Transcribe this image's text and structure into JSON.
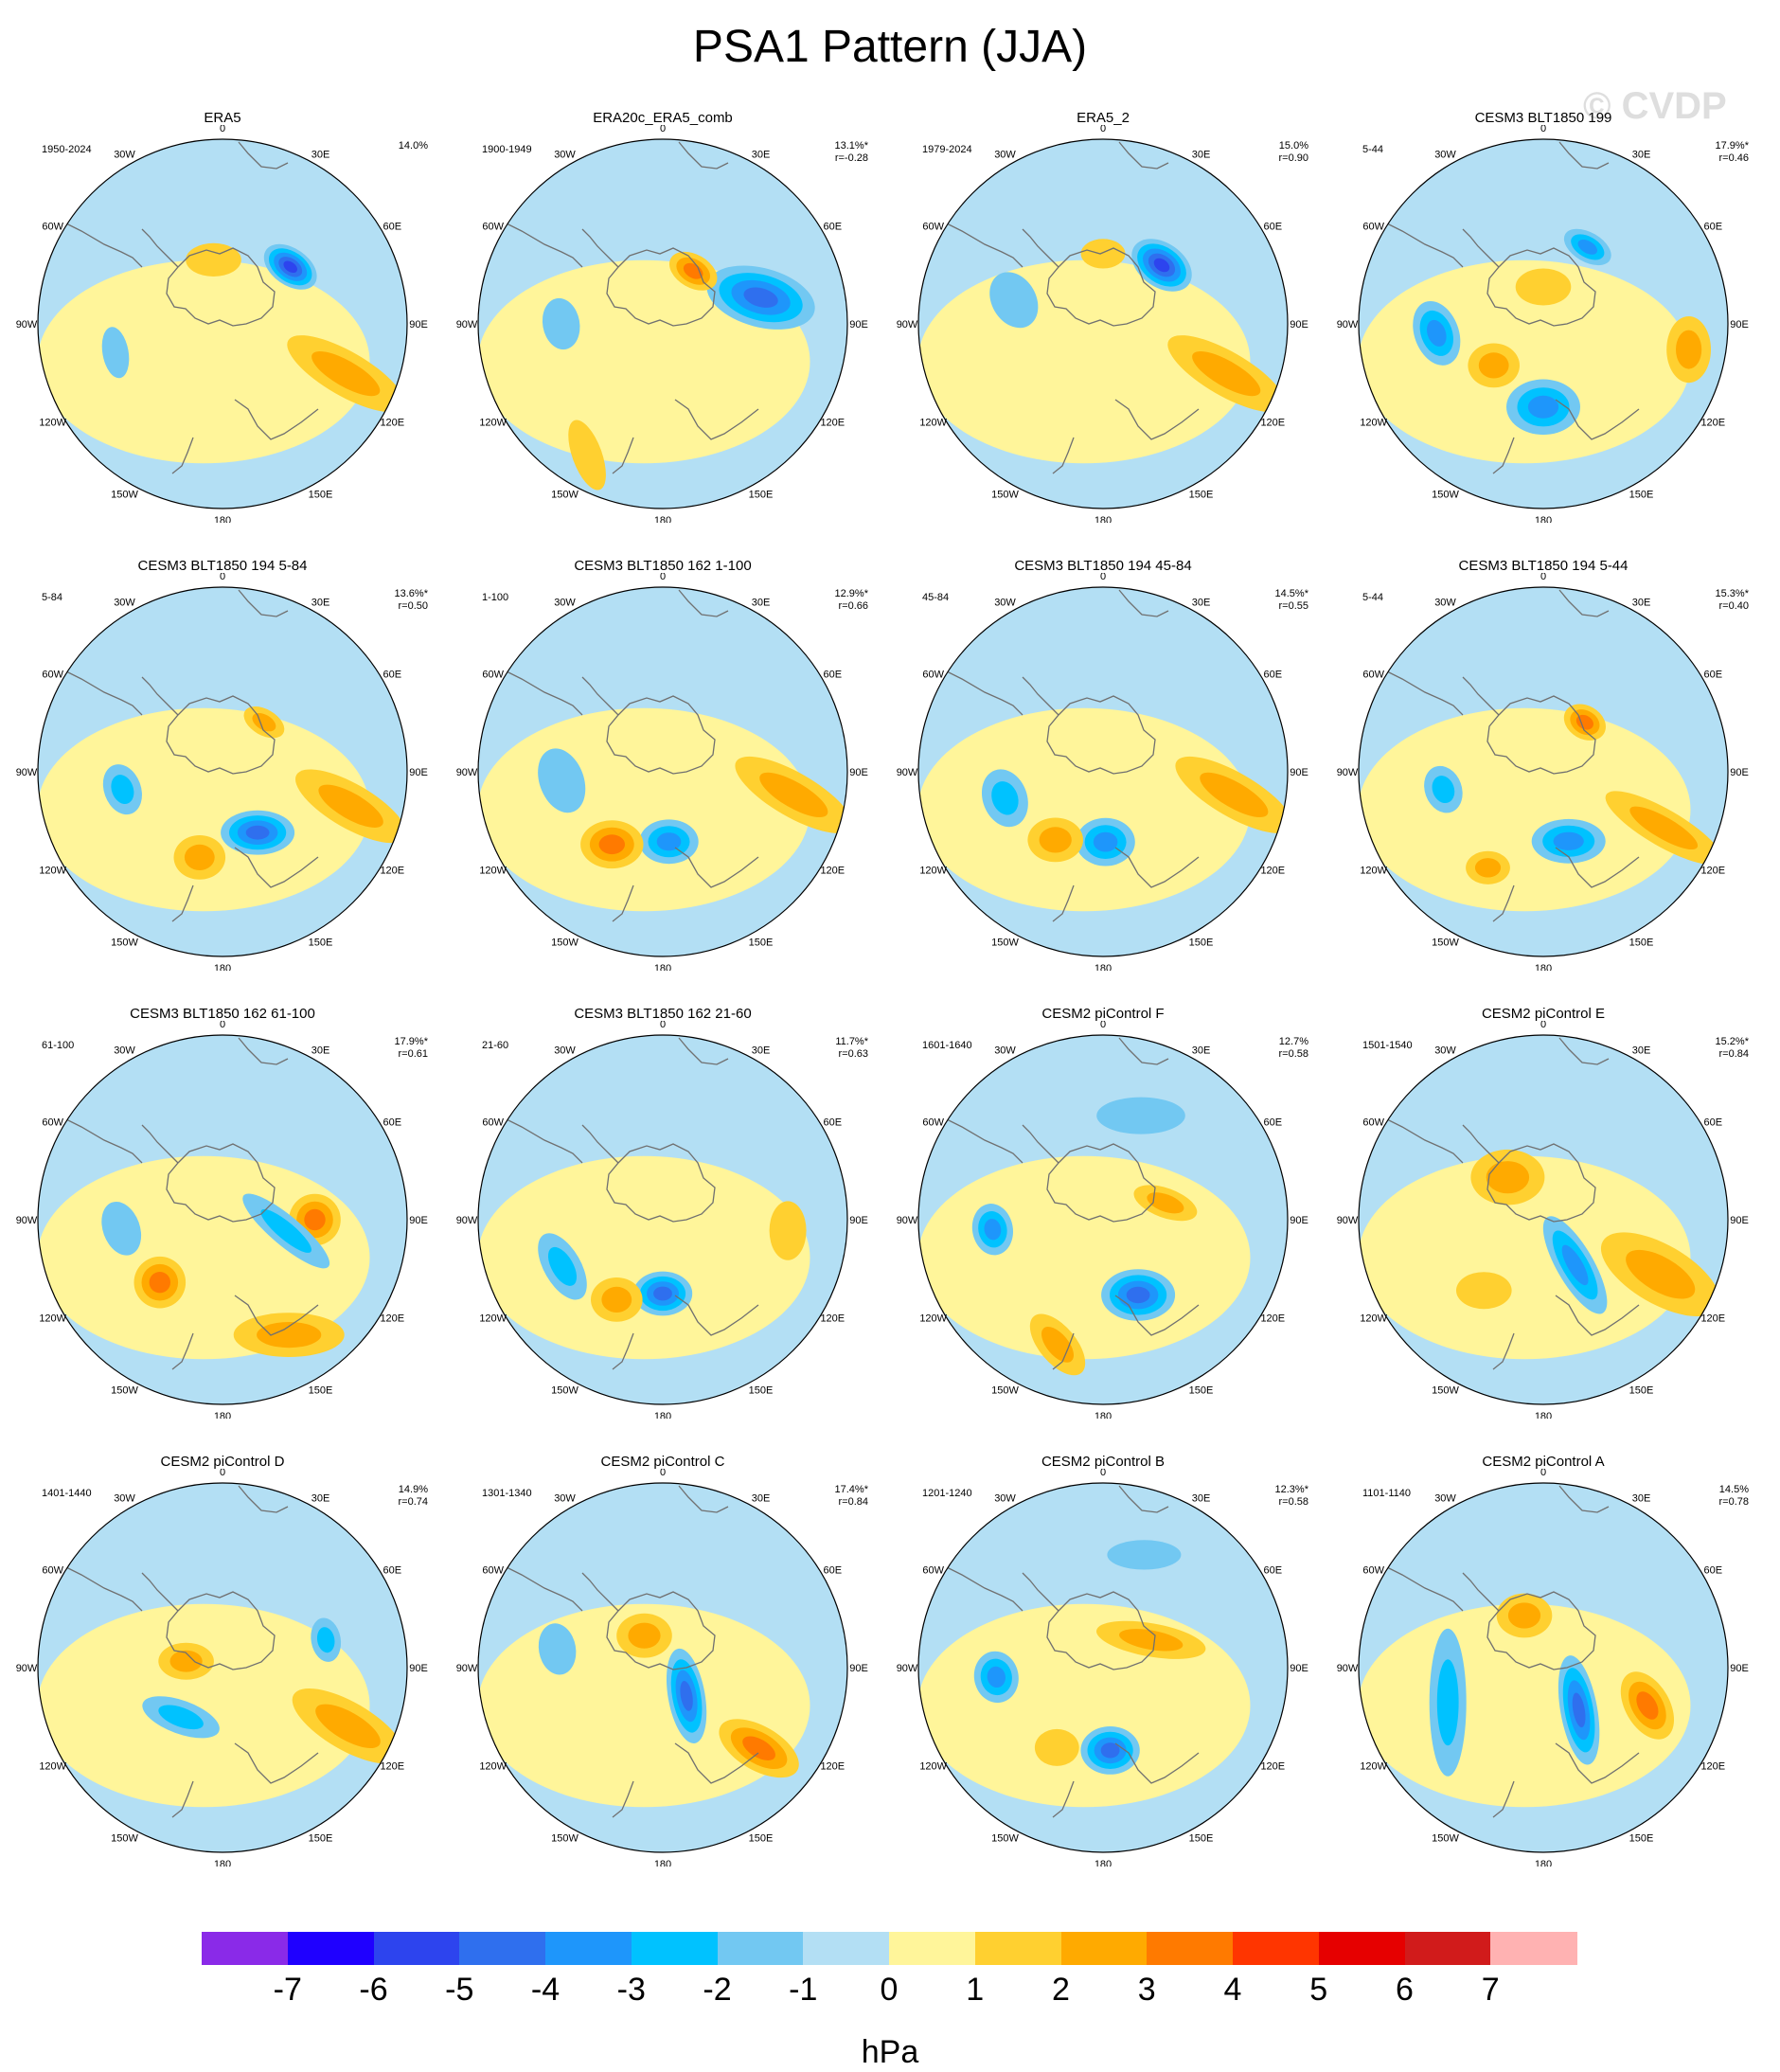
{
  "title": "PSA1 Pattern (JJA)",
  "watermark": "© CVDP",
  "longitude_labels": [
    "0",
    "30E",
    "60E",
    "90E",
    "120E",
    "150E",
    "180",
    "150W",
    "120W",
    "90W",
    "60W",
    "30W"
  ],
  "colors": {
    "land_outline": "#707070",
    "map_border": "#000000",
    "scale": [
      "#8a2ae8",
      "#1f00ff",
      "#2d44ee",
      "#2f6fee",
      "#1e96fb",
      "#00c2ff",
      "#72c8f2",
      "#b3dff4",
      "#fff59a",
      "#ffd030",
      "#ffaa00",
      "#ff7a00",
      "#ff3500",
      "#e60000",
      "#d11b1b",
      "#ffb2b2"
    ]
  },
  "colorbar": {
    "ticks": [
      "-7",
      "-6",
      "-5",
      "-4",
      "-3",
      "-2",
      "-1",
      "0",
      "1",
      "2",
      "3",
      "4",
      "5",
      "6",
      "7"
    ],
    "unit": "hPa"
  },
  "panels": [
    {
      "name": "ERA5",
      "years": "1950-2024",
      "pct": "14.0%",
      "r": "",
      "features": [
        {
          "lon": 50,
          "colat": 0.48,
          "value": -5.5,
          "rx": 0.16,
          "ry": 0.1,
          "rot": 35
        },
        {
          "lon": 112,
          "colat": 0.72,
          "value": 2.2,
          "rx": 0.36,
          "ry": 0.12,
          "rot": 30
        },
        {
          "lon": -8,
          "colat": 0.35,
          "value": 1.6,
          "rx": 0.15,
          "ry": 0.09,
          "rot": 0
        },
        {
          "lon": -105,
          "colat": 0.6,
          "value": -1.5,
          "rx": 0.14,
          "ry": 0.07,
          "rot": 80
        }
      ]
    },
    {
      "name": "ERA20c_ERA5_comb",
      "years": "1900-1949",
      "pct": "13.1%*",
      "r": "r=-0.28",
      "features": [
        {
          "lon": 75,
          "colat": 0.55,
          "value": -4.5,
          "rx": 0.3,
          "ry": 0.16,
          "rot": 15
        },
        {
          "lon": 30,
          "colat": 0.33,
          "value": 3.5,
          "rx": 0.14,
          "ry": 0.09,
          "rot": 30
        },
        {
          "lon": -90,
          "colat": 0.55,
          "value": -1.4,
          "rx": 0.14,
          "ry": 0.1,
          "rot": 80
        },
        {
          "lon": -150,
          "colat": 0.82,
          "value": 1.0,
          "rx": 0.2,
          "ry": 0.08,
          "rot": 70
        }
      ]
    },
    {
      "name": "ERA5_2",
      "years": "1979-2024",
      "pct": "15.0%",
      "r": "r=0.90",
      "features": [
        {
          "lon": 45,
          "colat": 0.45,
          "value": -5.0,
          "rx": 0.18,
          "ry": 0.12,
          "rot": 35
        },
        {
          "lon": 112,
          "colat": 0.72,
          "value": 2.0,
          "rx": 0.36,
          "ry": 0.12,
          "rot": 30
        },
        {
          "lon": -75,
          "colat": 0.5,
          "value": -1.5,
          "rx": 0.16,
          "ry": 0.12,
          "rot": 60
        },
        {
          "lon": 0,
          "colat": 0.38,
          "value": 1.3,
          "rx": 0.12,
          "ry": 0.08,
          "rot": 0
        }
      ]
    },
    {
      "name": "CESM3 BLT1850 199",
      "years": "5-44",
      "pct": "17.9%*",
      "r": "r=0.46",
      "features": [
        {
          "lon": 180,
          "colat": 0.45,
          "value": -3.5,
          "rx": 0.2,
          "ry": 0.15,
          "rot": 0
        },
        {
          "lon": -95,
          "colat": 0.58,
          "value": -3.2,
          "rx": 0.18,
          "ry": 0.12,
          "rot": 70
        },
        {
          "lon": 30,
          "colat": 0.48,
          "value": -3.0,
          "rx": 0.14,
          "ry": 0.08,
          "rot": 30
        },
        {
          "lon": 100,
          "colat": 0.8,
          "value": 2.8,
          "rx": 0.18,
          "ry": 0.12,
          "rot": 90
        },
        {
          "lon": -130,
          "colat": 0.35,
          "value": 2.6,
          "rx": 0.14,
          "ry": 0.12,
          "rot": 0
        },
        {
          "lon": 0,
          "colat": 0.2,
          "value": 1.5,
          "rx": 0.15,
          "ry": 0.1,
          "rot": 0
        }
      ]
    },
    {
      "name": "CESM3 BLT1850 194 5-84",
      "years": "5-84",
      "pct": "13.6%*",
      "r": "r=0.50",
      "features": [
        {
          "lon": 150,
          "colat": 0.38,
          "value": -4.0,
          "rx": 0.2,
          "ry": 0.12,
          "rot": 0
        },
        {
          "lon": -100,
          "colat": 0.55,
          "value": -2.5,
          "rx": 0.14,
          "ry": 0.1,
          "rot": 70
        },
        {
          "lon": -165,
          "colat": 0.48,
          "value": 2.8,
          "rx": 0.14,
          "ry": 0.12,
          "rot": 0
        },
        {
          "lon": 105,
          "colat": 0.72,
          "value": 2.2,
          "rx": 0.34,
          "ry": 0.12,
          "rot": 30
        },
        {
          "lon": 40,
          "colat": 0.35,
          "value": 2.5,
          "rx": 0.12,
          "ry": 0.07,
          "rot": 30
        }
      ]
    },
    {
      "name": "CESM3 BLT1850 162 1-100",
      "years": "1-100",
      "pct": "12.9%*",
      "r": "r=0.66",
      "features": [
        {
          "lon": 175,
          "colat": 0.38,
          "value": -3.5,
          "rx": 0.16,
          "ry": 0.12,
          "rot": 0
        },
        {
          "lon": -145,
          "colat": 0.48,
          "value": 3.0,
          "rx": 0.17,
          "ry": 0.13,
          "rot": 0
        },
        {
          "lon": 100,
          "colat": 0.72,
          "value": 2.2,
          "rx": 0.36,
          "ry": 0.12,
          "rot": 30
        },
        {
          "lon": -95,
          "colat": 0.55,
          "value": -1.6,
          "rx": 0.18,
          "ry": 0.12,
          "rot": 70
        }
      ]
    },
    {
      "name": "CESM3 BLT1850 194 45-84",
      "years": "45-84",
      "pct": "14.5%*",
      "r": "r=0.55",
      "features": [
        {
          "lon": 178,
          "colat": 0.38,
          "value": -3.2,
          "rx": 0.16,
          "ry": 0.13,
          "rot": 0
        },
        {
          "lon": -145,
          "colat": 0.45,
          "value": 2.8,
          "rx": 0.15,
          "ry": 0.12,
          "rot": 0
        },
        {
          "lon": -105,
          "colat": 0.55,
          "value": -2.8,
          "rx": 0.16,
          "ry": 0.12,
          "rot": 70
        },
        {
          "lon": 100,
          "colat": 0.72,
          "value": 2.2,
          "rx": 0.36,
          "ry": 0.12,
          "rot": 30
        }
      ]
    },
    {
      "name": "CESM3 BLT1850 194 5-44",
      "years": "5-44",
      "pct": "15.3%*",
      "r": "r=0.40",
      "features": [
        {
          "lon": 160,
          "colat": 0.4,
          "value": -3.8,
          "rx": 0.2,
          "ry": 0.12,
          "rot": 0
        },
        {
          "lon": -100,
          "colat": 0.55,
          "value": -2.4,
          "rx": 0.13,
          "ry": 0.1,
          "rot": 70
        },
        {
          "lon": 40,
          "colat": 0.35,
          "value": 3.6,
          "rx": 0.12,
          "ry": 0.09,
          "rot": 30
        },
        {
          "lon": 115,
          "colat": 0.72,
          "value": 2.0,
          "rx": 0.36,
          "ry": 0.1,
          "rot": 30
        },
        {
          "lon": -150,
          "colat": 0.6,
          "value": 2.4,
          "rx": 0.12,
          "ry": 0.09,
          "rot": 0
        }
      ]
    },
    {
      "name": "CESM3 BLT1850 162 61-100",
      "years": "61-100",
      "pct": "17.9%*",
      "r": "r=0.61",
      "features": [
        {
          "lon": 90,
          "colat": 0.5,
          "value": 3.8,
          "rx": 0.14,
          "ry": 0.14,
          "rot": 0
        },
        {
          "lon": -135,
          "colat": 0.48,
          "value": 3.5,
          "rx": 0.14,
          "ry": 0.14,
          "rot": 0
        },
        {
          "lon": 100,
          "colat": 0.35,
          "value": -2.5,
          "rx": 0.3,
          "ry": 0.08,
          "rot": 40
        },
        {
          "lon": -95,
          "colat": 0.55,
          "value": -1.8,
          "rx": 0.15,
          "ry": 0.1,
          "rot": 70
        },
        {
          "lon": 150,
          "colat": 0.72,
          "value": 2.0,
          "rx": 0.3,
          "ry": 0.12,
          "rot": 0
        }
      ]
    },
    {
      "name": "CESM3 BLT1850 162 21-60",
      "years": "21-60",
      "pct": "11.7%*",
      "r": "r=0.63",
      "features": [
        {
          "lon": -180,
          "colat": 0.4,
          "value": -4.0,
          "rx": 0.16,
          "ry": 0.12,
          "rot": 0
        },
        {
          "lon": -115,
          "colat": 0.6,
          "value": -2.2,
          "rx": 0.2,
          "ry": 0.1,
          "rot": 60
        },
        {
          "lon": -150,
          "colat": 0.5,
          "value": 2.6,
          "rx": 0.14,
          "ry": 0.12,
          "rot": 0
        },
        {
          "lon": 95,
          "colat": 0.68,
          "value": 1.8,
          "rx": 0.16,
          "ry": 0.1,
          "rot": 90
        }
      ]
    },
    {
      "name": "CESM2 piControl F",
      "years": "1601-1640",
      "pct": "12.7%",
      "r": "r=0.58",
      "features": [
        {
          "lon": 155,
          "colat": 0.45,
          "value": -4.2,
          "rx": 0.2,
          "ry": 0.14,
          "rot": 0
        },
        {
          "lon": -95,
          "colat": 0.6,
          "value": -3.5,
          "rx": 0.14,
          "ry": 0.11,
          "rot": 80
        },
        {
          "lon": 20,
          "colat": 0.6,
          "value": -1.6,
          "rx": 0.24,
          "ry": 0.1,
          "rot": 0
        },
        {
          "lon": 75,
          "colat": 0.35,
          "value": 2.8,
          "rx": 0.18,
          "ry": 0.08,
          "rot": 20
        },
        {
          "lon": -160,
          "colat": 0.72,
          "value": 2.0,
          "rx": 0.2,
          "ry": 0.1,
          "rot": 50
        }
      ]
    },
    {
      "name": "CESM2 piControl E",
      "years": "1501-1540",
      "pct": "15.2%*",
      "r": "r=0.84",
      "features": [
        {
          "lon": 145,
          "colat": 0.3,
          "value": -3.5,
          "rx": 0.3,
          "ry": 0.1,
          "rot": 60
        },
        {
          "lon": 115,
          "colat": 0.7,
          "value": 2.8,
          "rx": 0.36,
          "ry": 0.16,
          "rot": 30
        },
        {
          "lon": -40,
          "colat": 0.3,
          "value": 2.0,
          "rx": 0.2,
          "ry": 0.15,
          "rot": 0
        },
        {
          "lon": -140,
          "colat": 0.5,
          "value": 1.4,
          "rx": 0.15,
          "ry": 0.1,
          "rot": 0
        }
      ]
    },
    {
      "name": "CESM2 piControl D",
      "years": "1401-1440",
      "pct": "14.9%",
      "r": "r=0.74",
      "features": [
        {
          "lon": -140,
          "colat": 0.35,
          "value": -2.5,
          "rx": 0.22,
          "ry": 0.09,
          "rot": 20
        },
        {
          "lon": 75,
          "colat": 0.58,
          "value": -2.8,
          "rx": 0.12,
          "ry": 0.08,
          "rot": 80
        },
        {
          "lon": 115,
          "colat": 0.75,
          "value": 2.0,
          "rx": 0.34,
          "ry": 0.13,
          "rot": 30
        },
        {
          "lon": -80,
          "colat": 0.2,
          "value": 2.2,
          "rx": 0.15,
          "ry": 0.1,
          "rot": 0
        }
      ]
    },
    {
      "name": "CESM2 piControl C",
      "years": "1301-1340",
      "pct": "17.4%*",
      "r": "r=0.84",
      "features": [
        {
          "lon": 140,
          "colat": 0.2,
          "value": -4.5,
          "rx": 0.26,
          "ry": 0.1,
          "rot": 80
        },
        {
          "lon": 130,
          "colat": 0.68,
          "value": 3.0,
          "rx": 0.24,
          "ry": 0.12,
          "rot": 30
        },
        {
          "lon": -80,
          "colat": 0.58,
          "value": -1.5,
          "rx": 0.14,
          "ry": 0.1,
          "rot": 80
        },
        {
          "lon": -30,
          "colat": 0.2,
          "value": 2.2,
          "rx": 0.15,
          "ry": 0.12,
          "rot": 0
        }
      ]
    },
    {
      "name": "CESM2 piControl B",
      "years": "1201-1240",
      "pct": "12.3%*",
      "r": "r=0.58",
      "features": [
        {
          "lon": 175,
          "colat": 0.45,
          "value": -4.0,
          "rx": 0.16,
          "ry": 0.13,
          "rot": 0
        },
        {
          "lon": -95,
          "colat": 0.58,
          "value": -3.5,
          "rx": 0.14,
          "ry": 0.12,
          "rot": 80
        },
        {
          "lon": 60,
          "colat": 0.3,
          "value": 2.4,
          "rx": 0.3,
          "ry": 0.09,
          "rot": 10
        },
        {
          "lon": 20,
          "colat": 0.65,
          "value": -1.2,
          "rx": 0.2,
          "ry": 0.08,
          "rot": 0
        },
        {
          "lon": -150,
          "colat": 0.5,
          "value": 1.6,
          "rx": 0.12,
          "ry": 0.1,
          "rot": 0
        }
      ]
    },
    {
      "name": "CESM2 piControl A",
      "years": "1101-1140",
      "pct": "14.5%",
      "r": "r=0.78",
      "features": [
        {
          "lon": 140,
          "colat": 0.3,
          "value": -4.0,
          "rx": 0.3,
          "ry": 0.1,
          "rot": 80
        },
        {
          "lon": 110,
          "colat": 0.6,
          "value": 3.0,
          "rx": 0.2,
          "ry": 0.12,
          "rot": 60
        },
        {
          "lon": -110,
          "colat": 0.55,
          "value": -2.2,
          "rx": 0.4,
          "ry": 0.1,
          "rot": 90
        },
        {
          "lon": -20,
          "colat": 0.3,
          "value": 2.2,
          "rx": 0.15,
          "ry": 0.12,
          "rot": 0
        }
      ]
    }
  ]
}
